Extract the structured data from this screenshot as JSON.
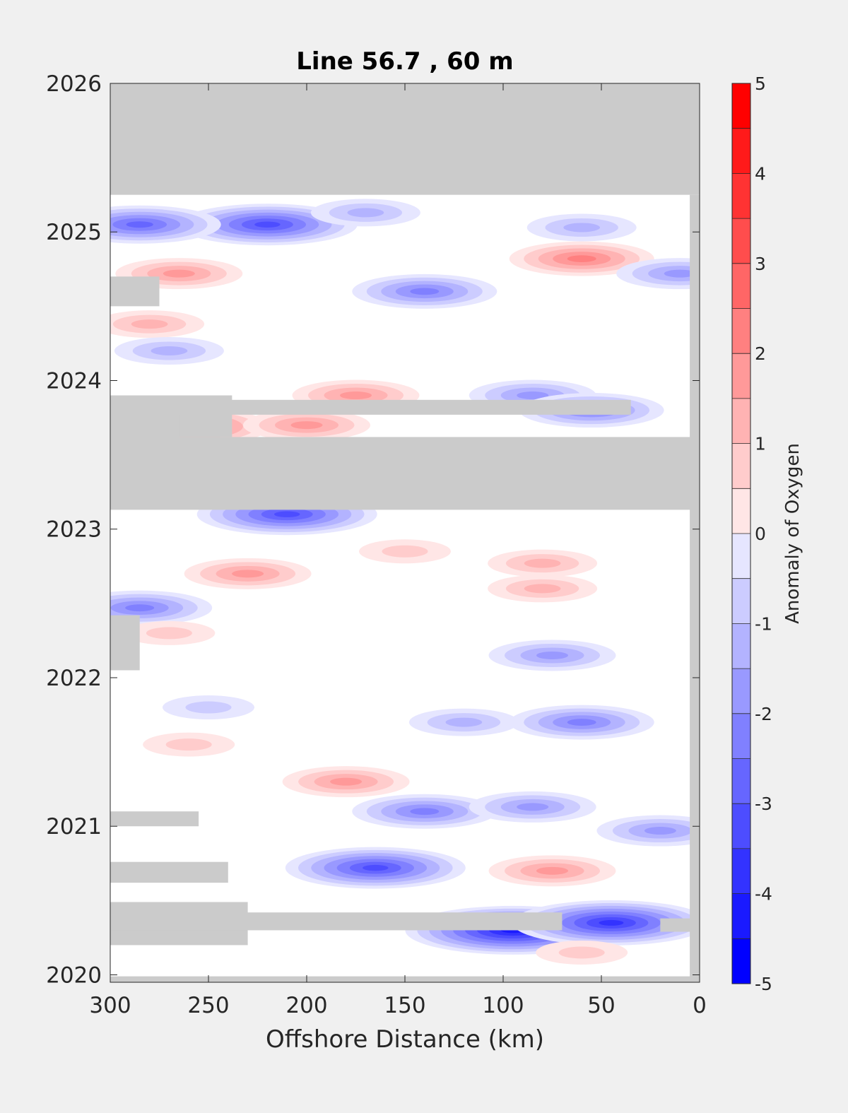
{
  "chart_data": {
    "type": "heatmap",
    "title": "Line 56.7 , 60 m",
    "xlabel": "Offshore Distance (km)",
    "ylabel": "",
    "x_reversed": true,
    "xlim": [
      300,
      0
    ],
    "ylim": [
      2019.95,
      2026
    ],
    "x_ticks": [
      "300",
      "250",
      "200",
      "150",
      "100",
      "50",
      "0"
    ],
    "y_ticks": [
      "2020",
      "2021",
      "2022",
      "2023",
      "2024",
      "2025",
      "2026"
    ],
    "colorbar": {
      "label": "Anomaly of Oxygen",
      "range": [
        -5,
        5
      ],
      "ticks": [
        "5",
        "4",
        "3",
        "2",
        "1",
        "0",
        "-1",
        "-2",
        "-3",
        "-4",
        "-5"
      ],
      "levels": [
        -5,
        -4.5,
        -4,
        -3.5,
        -3,
        -2.5,
        -2,
        -1.5,
        -1,
        -0.5,
        0,
        0.5,
        1,
        1.5,
        2,
        2.5,
        3,
        3.5,
        4,
        4.5,
        5
      ],
      "negative_color": "#0000ff",
      "positive_color": "#ff0000",
      "neutral_color": "#ffffff"
    },
    "missing_color": "#cbcbcb",
    "missing_regions": [
      {
        "x": [
          300,
          0
        ],
        "y": [
          2025.25,
          2026
        ]
      },
      {
        "x": [
          5,
          0
        ],
        "y": [
          2019.95,
          2025.25
        ]
      },
      {
        "x": [
          300,
          0
        ],
        "y": [
          2019.95,
          2019.99
        ]
      },
      {
        "x": [
          300,
          0
        ],
        "y": [
          2023.13,
          2023.62
        ]
      },
      {
        "x": [
          300,
          238
        ],
        "y": [
          2023.62,
          2023.9
        ]
      },
      {
        "x": [
          300,
          35
        ],
        "y": [
          2023.77,
          2023.87
        ]
      },
      {
        "x": [
          300,
          265
        ],
        "y": [
          2023.62,
          2023.77
        ]
      },
      {
        "x": [
          300,
          275
        ],
        "y": [
          2024.5,
          2024.7
        ]
      },
      {
        "x": [
          300,
          285
        ],
        "y": [
          2022.05,
          2022.42
        ]
      },
      {
        "x": [
          300,
          255
        ],
        "y": [
          2021,
          2021.1
        ]
      },
      {
        "x": [
          300,
          240
        ],
        "y": [
          2020.62,
          2020.76
        ]
      },
      {
        "x": [
          300,
          230
        ],
        "y": [
          2020.2,
          2020.49
        ]
      },
      {
        "x": [
          300,
          70
        ],
        "y": [
          2020.3,
          2020.42
        ]
      },
      {
        "x": [
          20,
          0
        ],
        "y": [
          2020.29,
          2020.38
        ]
      }
    ],
    "anomalies": [
      {
        "x": 220,
        "y": 2025.05,
        "value": -3.5
      },
      {
        "x": 285,
        "y": 2025.05,
        "value": -3
      },
      {
        "x": 170,
        "y": 2025.13,
        "value": -1.5
      },
      {
        "x": 60,
        "y": 2025.03,
        "value": -1.5
      },
      {
        "x": 265,
        "y": 2024.72,
        "value": 2
      },
      {
        "x": 60,
        "y": 2024.82,
        "value": 2.5
      },
      {
        "x": 140,
        "y": 2024.6,
        "value": -2.5
      },
      {
        "x": 10,
        "y": 2024.72,
        "value": -2
      },
      {
        "x": 280,
        "y": 2024.38,
        "value": 1.5
      },
      {
        "x": 270,
        "y": 2024.2,
        "value": -1.5
      },
      {
        "x": 175,
        "y": 2023.9,
        "value": 2
      },
      {
        "x": 85,
        "y": 2023.9,
        "value": -2
      },
      {
        "x": 55,
        "y": 2023.8,
        "value": -2.5
      },
      {
        "x": 260,
        "y": 2023.69,
        "value": 3
      },
      {
        "x": 200,
        "y": 2023.7,
        "value": 2
      },
      {
        "x": 210,
        "y": 2023.1,
        "value": -3.5
      },
      {
        "x": 230,
        "y": 2022.7,
        "value": 2
      },
      {
        "x": 80,
        "y": 2022.77,
        "value": 1.5
      },
      {
        "x": 150,
        "y": 2022.85,
        "value": 1
      },
      {
        "x": 285,
        "y": 2022.47,
        "value": -2.5
      },
      {
        "x": 270,
        "y": 2022.3,
        "value": 1
      },
      {
        "x": 80,
        "y": 2022.6,
        "value": 1.5
      },
      {
        "x": 75,
        "y": 2022.15,
        "value": -2
      },
      {
        "x": 60,
        "y": 2021.7,
        "value": -2.5
      },
      {
        "x": 120,
        "y": 2021.7,
        "value": -1.5
      },
      {
        "x": 180,
        "y": 2021.3,
        "value": 2
      },
      {
        "x": 260,
        "y": 2021.55,
        "value": 1
      },
      {
        "x": 250,
        "y": 2021.8,
        "value": -1
      },
      {
        "x": 140,
        "y": 2021.1,
        "value": -2.5
      },
      {
        "x": 85,
        "y": 2021.13,
        "value": -2
      },
      {
        "x": 20,
        "y": 2020.97,
        "value": -2
      },
      {
        "x": 165,
        "y": 2020.72,
        "value": -3.5
      },
      {
        "x": 75,
        "y": 2020.7,
        "value": 2
      },
      {
        "x": 95,
        "y": 2020.3,
        "value": -4.5
      },
      {
        "x": 45,
        "y": 2020.35,
        "value": -4
      },
      {
        "x": 60,
        "y": 2020.15,
        "value": 1
      }
    ]
  }
}
